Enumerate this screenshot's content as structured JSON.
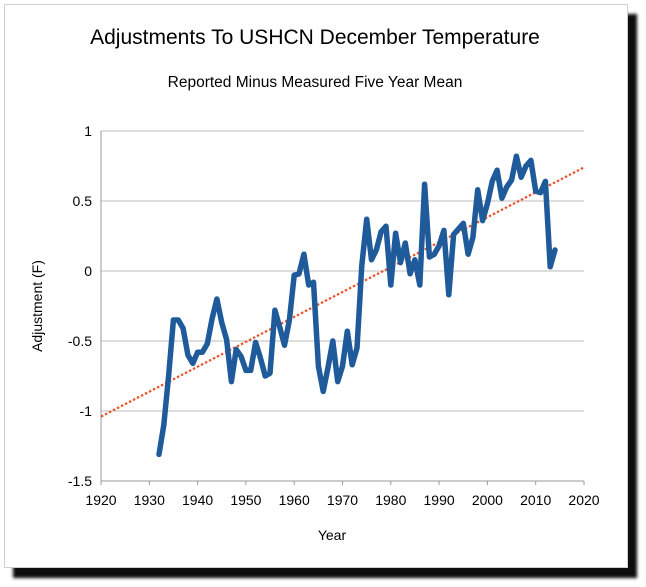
{
  "chart_data": {
    "type": "line",
    "title": "Adjustments To USHCN December Temperature",
    "subtitle": "Reported Minus Measured Five Year Mean",
    "xlabel": "Year",
    "ylabel": "Adjustment (F)",
    "xlim": [
      1920,
      2020
    ],
    "ylim": [
      -1.5,
      1
    ],
    "xticks": [
      1920,
      1930,
      1940,
      1950,
      1960,
      1970,
      1980,
      1990,
      2000,
      2010,
      2020
    ],
    "yticks": [
      -1.5,
      -1,
      -0.5,
      0,
      0.5,
      1
    ],
    "grid": "horizontal",
    "colors": {
      "series": "#1f5a9a",
      "trend": "#e8542a"
    },
    "series": [
      {
        "x": [
          1932,
          1933,
          1934,
          1935,
          1936,
          1937,
          1938,
          1939,
          1940,
          1941,
          1942,
          1943,
          1944,
          1945,
          1946,
          1947,
          1948,
          1949,
          1950,
          1951,
          1952,
          1953,
          1954,
          1955,
          1956,
          1957,
          1958,
          1959,
          1960,
          1961,
          1962,
          1963,
          1964,
          1965,
          1966,
          1967,
          1968,
          1969,
          1970,
          1971,
          1972,
          1973,
          1974,
          1975,
          1976,
          1977,
          1978,
          1979,
          1980,
          1981,
          1982,
          1983,
          1984,
          1985,
          1986,
          1987,
          1988,
          1989,
          1990,
          1991,
          1992,
          1993,
          1994,
          1995,
          1996,
          1997,
          1998,
          1999,
          2000,
          2001,
          2002,
          2003,
          2004,
          2005,
          2006,
          2007,
          2008,
          2009,
          2010,
          2011,
          2012,
          2013,
          2014
        ],
        "y": [
          -1.31,
          -1.1,
          -0.75,
          -0.35,
          -0.35,
          -0.41,
          -0.6,
          -0.66,
          -0.58,
          -0.58,
          -0.52,
          -0.34,
          -0.2,
          -0.37,
          -0.49,
          -0.79,
          -0.56,
          -0.61,
          -0.71,
          -0.71,
          -0.51,
          -0.62,
          -0.75,
          -0.73,
          -0.28,
          -0.4,
          -0.53,
          -0.35,
          -0.03,
          -0.02,
          0.12,
          -0.1,
          -0.08,
          -0.68,
          -0.86,
          -0.69,
          -0.5,
          -0.79,
          -0.68,
          -0.43,
          -0.67,
          -0.55,
          0.04,
          0.37,
          0.08,
          0.15,
          0.28,
          0.32,
          -0.1,
          0.27,
          0.06,
          0.2,
          -0.02,
          0.08,
          -0.1,
          0.62,
          0.1,
          0.12,
          0.18,
          0.29,
          -0.17,
          0.26,
          0.3,
          0.34,
          0.12,
          0.24,
          0.58,
          0.36,
          0.48,
          0.64,
          0.72,
          0.52,
          0.6,
          0.65,
          0.82,
          0.67,
          0.75,
          0.79,
          0.57,
          0.56,
          0.64,
          0.03,
          0.15
        ]
      }
    ],
    "trendline": {
      "x": [
        1920,
        2020
      ],
      "y": [
        -1.04,
        0.74
      ]
    }
  }
}
